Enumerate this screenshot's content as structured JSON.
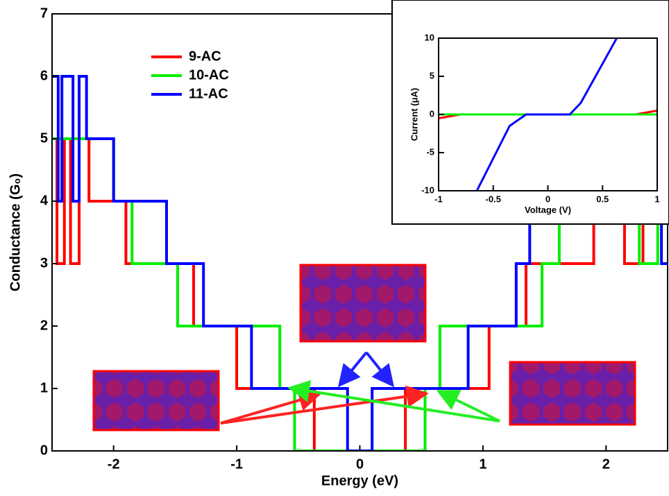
{
  "chart_data": [
    {
      "type": "line",
      "xlabel": "Energy (eV)",
      "ylabel": "Conductance (G₀)",
      "xlim": [
        -2.5,
        2.5
      ],
      "ylim": [
        0,
        7
      ],
      "xticks": [
        -2,
        -1,
        0,
        1,
        2
      ],
      "yticks": [
        0,
        1,
        2,
        3,
        4,
        5,
        6,
        7
      ],
      "legend": "upper left",
      "series": [
        {
          "name": "9-AC",
          "color": "#ff0000",
          "x": [
            -2.5,
            -2.46,
            -2.46,
            -2.4,
            -2.4,
            -2.35,
            -2.35,
            -2.28,
            -2.28,
            -2.2,
            -2.2,
            -1.9,
            -1.9,
            -1.35,
            -1.35,
            -1.0,
            -1.0,
            -0.37,
            -0.37,
            0.37,
            0.37,
            1.05,
            1.05,
            1.35,
            1.35,
            1.9,
            1.9,
            2.15,
            2.15,
            2.3,
            2.3,
            2.5
          ],
          "values": [
            5,
            5,
            3,
            3,
            5,
            5,
            3,
            3,
            5,
            5,
            4,
            4,
            3,
            3,
            2,
            2,
            1,
            1,
            0,
            0,
            1,
            1,
            2,
            2,
            3,
            3,
            4,
            4,
            3,
            3,
            4,
            4
          ]
        },
        {
          "name": "10-AC",
          "color": "#00ee00",
          "x": [
            -2.5,
            -2.0,
            -2.0,
            -1.85,
            -1.85,
            -1.48,
            -1.48,
            -0.65,
            -0.65,
            -0.53,
            -0.53,
            0.53,
            0.53,
            0.65,
            0.65,
            1.48,
            1.48,
            1.62,
            1.62,
            2.27,
            2.27,
            2.42,
            2.42,
            2.5
          ],
          "values": [
            5,
            5,
            4,
            4,
            3,
            3,
            2,
            2,
            1,
            1,
            0,
            0,
            1,
            1,
            2,
            2,
            3,
            3,
            4,
            4,
            3,
            3,
            4,
            4
          ]
        },
        {
          "name": "11-AC",
          "color": "#0000ff",
          "x": [
            -2.5,
            -2.45,
            -2.45,
            -2.42,
            -2.42,
            -2.33,
            -2.33,
            -2.28,
            -2.28,
            -2.22,
            -2.22,
            -2.0,
            -2.0,
            -1.57,
            -1.57,
            -1.27,
            -1.27,
            -0.88,
            -0.88,
            -0.1,
            -0.1,
            0.1,
            0.1,
            0.88,
            0.88,
            1.27,
            1.27,
            1.38,
            1.38,
            2.45,
            2.45,
            2.5
          ],
          "values": [
            6,
            6,
            4,
            4,
            6,
            6,
            4,
            4,
            6,
            6,
            5,
            5,
            4,
            4,
            3,
            3,
            2,
            2,
            1,
            1,
            0,
            0,
            1,
            1,
            2,
            2,
            3,
            3,
            4,
            4,
            3,
            3
          ]
        }
      ]
    },
    {
      "type": "line",
      "xlabel": "Voltage (V)",
      "ylabel": "Current (μA)",
      "xlim": [
        -1,
        1
      ],
      "ylim": [
        -10,
        10
      ],
      "xticks": [
        -1,
        -0.5,
        0,
        0.5,
        1
      ],
      "yticks": [
        -10,
        -5,
        0,
        5,
        10
      ],
      "series": [
        {
          "color": "#ff0000",
          "x": [
            -1,
            -0.8,
            0.8,
            1
          ],
          "values": [
            -0.5,
            0,
            0,
            0.5
          ]
        },
        {
          "color": "#00ee00",
          "x": [
            -1,
            1
          ],
          "values": [
            0,
            0
          ]
        },
        {
          "color": "#0000ff",
          "x": [
            -0.65,
            -0.35,
            -0.2,
            0.2,
            0.3,
            0.63
          ],
          "values": [
            -10,
            -1.5,
            0,
            0,
            1.5,
            10
          ]
        }
      ]
    }
  ]
}
